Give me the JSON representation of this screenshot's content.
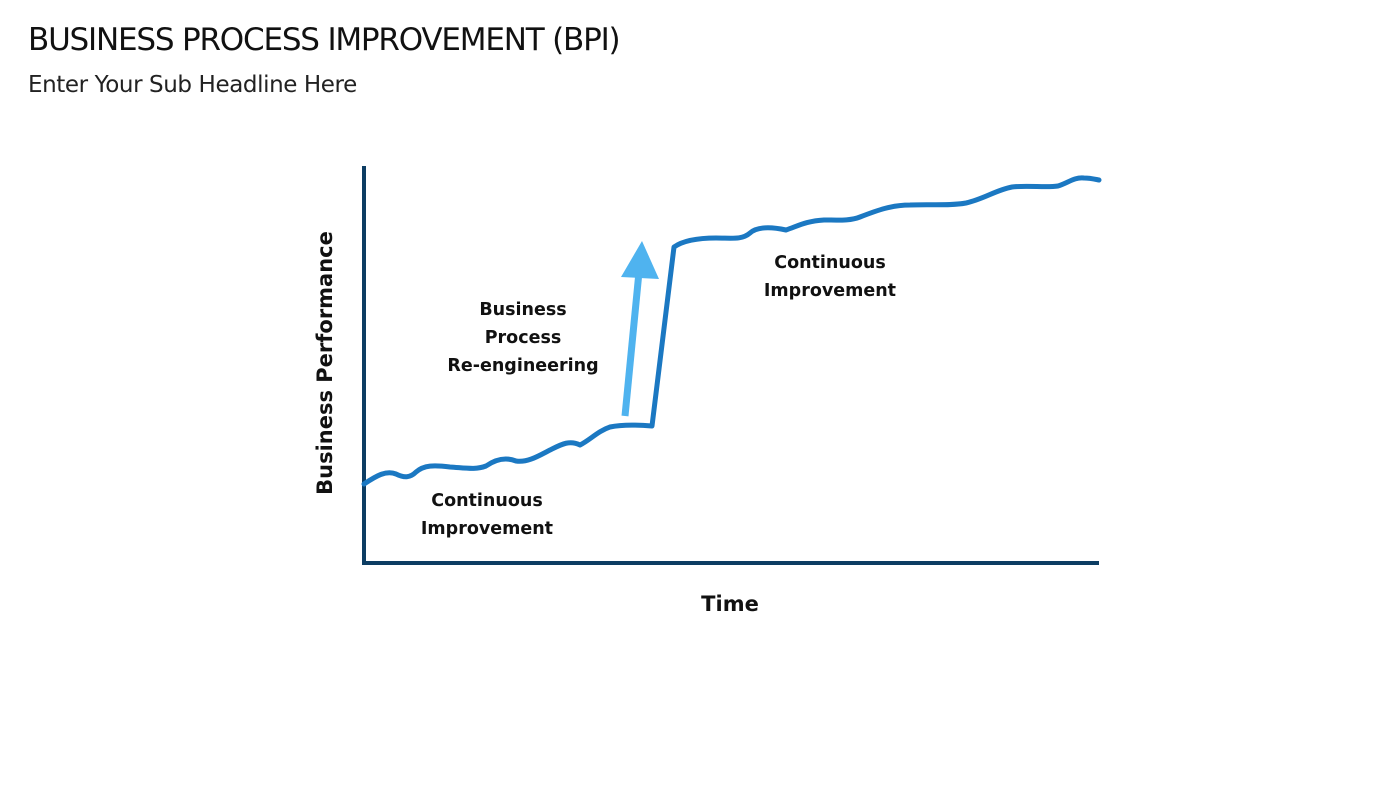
{
  "slide": {
    "title": "BUSINESS PROCESS IMPROVEMENT (BPI)",
    "subtitle": "Enter Your Sub Headline Here"
  },
  "diagram": {
    "y_axis_label": "Business Performance",
    "x_axis_label": "Time",
    "phase_1": {
      "line_1": "Continuous",
      "line_2": "Improvement"
    },
    "phase_2": {
      "line_1": "Business",
      "line_2": "Process",
      "line_3": "Re-engineering"
    },
    "phase_3": {
      "line_1": "Continuous",
      "line_2": "Improvement"
    }
  },
  "colors": {
    "axis": "#0d3d63",
    "performance_line": "#1b78c2",
    "arrow": "#4fb3ef",
    "text": "#111111"
  }
}
